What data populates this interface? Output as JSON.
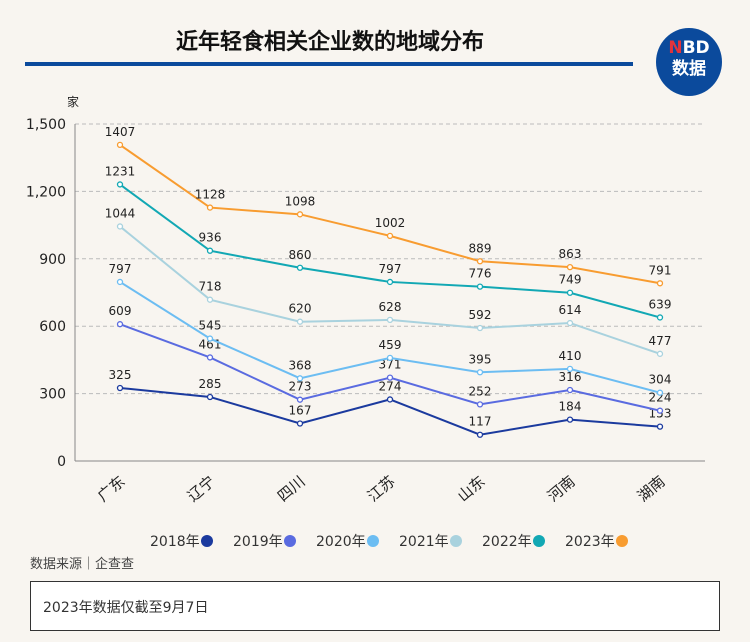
{
  "title": "近年轻食相关企业数的地域分布",
  "logo": {
    "brand": "NBD",
    "sub": "数据"
  },
  "source": "数据来源｜企查查",
  "note": "2023年数据仅截至9月7日",
  "colors": {
    "rule": "#0b4a9c"
  },
  "chart_data": {
    "type": "line",
    "title": "近年轻食相关企业数的地域分布",
    "ylabel": "家",
    "ylim": [
      0,
      1500
    ],
    "yticks": [
      0,
      300,
      600,
      900,
      1200,
      1500
    ],
    "ytick_labels": [
      "0",
      "300",
      "600",
      "900",
      "1,200",
      "1,500"
    ],
    "grid": true,
    "legend": "bottom",
    "categories": [
      "广东",
      "辽宁",
      "四川",
      "江苏",
      "山东",
      "河南",
      "湖南"
    ],
    "series": [
      {
        "name": "2018年",
        "color": "#1b3a9e",
        "values": [
          325,
          285,
          167,
          274,
          117,
          184,
          153
        ]
      },
      {
        "name": "2019年",
        "color": "#5a6be0",
        "values": [
          609,
          461,
          273,
          371,
          252,
          316,
          224
        ]
      },
      {
        "name": "2020年",
        "color": "#6cbdf2",
        "values": [
          797,
          545,
          368,
          459,
          395,
          410,
          304
        ]
      },
      {
        "name": "2021年",
        "color": "#a9d2de",
        "values": [
          1044,
          718,
          620,
          628,
          592,
          614,
          477
        ]
      },
      {
        "name": "2022年",
        "color": "#12a8b4",
        "values": [
          1231,
          936,
          860,
          797,
          776,
          749,
          639
        ]
      },
      {
        "name": "2023年",
        "color": "#f89c30",
        "values": [
          1407,
          1128,
          1098,
          1002,
          889,
          863,
          791
        ]
      }
    ]
  }
}
